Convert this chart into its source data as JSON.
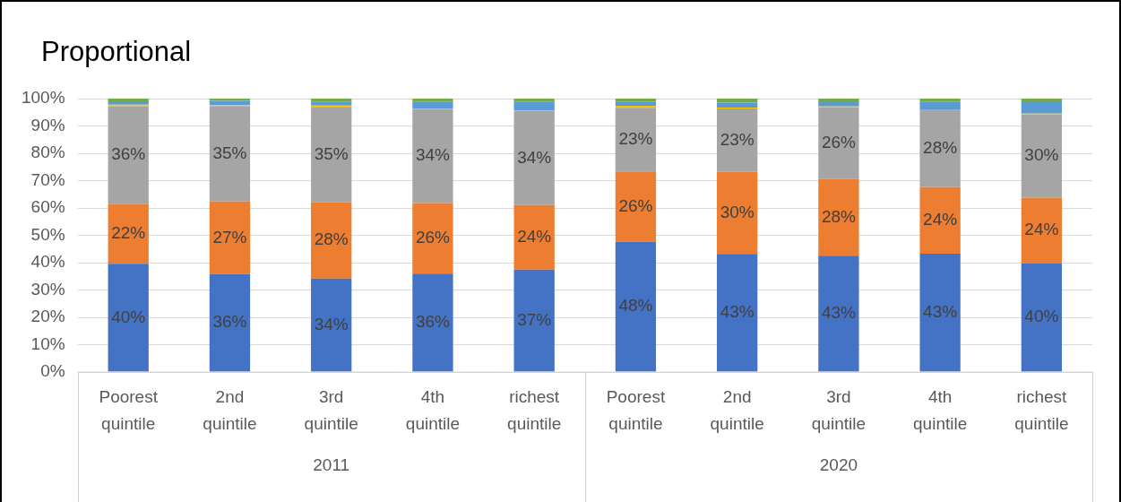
{
  "chart_data": {
    "type": "bar",
    "title": "Proportional",
    "stacked": true,
    "grid": "y",
    "legend": false,
    "categories": [
      "Poorest quintile",
      "2nd quintile",
      "3rd quintile",
      "4th quintile",
      "richest quintile",
      "Poorest quintile",
      "2nd quintile",
      "3rd quintile",
      "4th quintile",
      "richest quintile"
    ],
    "annotations": [
      "2011",
      "2020"
    ],
    "ylim": [
      0,
      100
    ],
    "yticks": [
      {
        "value": 0,
        "label": "0%"
      },
      {
        "value": 10,
        "label": "10%"
      },
      {
        "value": 20,
        "label": "20%"
      },
      {
        "value": 30,
        "label": "30%"
      },
      {
        "value": 40,
        "label": "40%"
      },
      {
        "value": 50,
        "label": "50%"
      },
      {
        "value": 60,
        "label": "60%"
      },
      {
        "value": 70,
        "label": "70%"
      },
      {
        "value": 80,
        "label": "80%"
      },
      {
        "value": 90,
        "label": "90%"
      },
      {
        "value": 100,
        "label": "100%"
      }
    ],
    "series": [
      {
        "color": "#4472c4",
        "values": [
          39.6,
          35.8,
          34.2,
          36.0,
          37.5,
          47.6,
          43.2,
          42.6,
          43.3,
          39.8
        ],
        "value_labels": [
          "40%",
          "36%",
          "34%",
          "36%",
          "37%",
          "48%",
          "43%",
          "43%",
          "43%",
          "40%"
        ]
      },
      {
        "color": "#ed7d31",
        "values": [
          21.8,
          26.6,
          27.9,
          25.8,
          23.6,
          25.8,
          30.0,
          28.0,
          24.3,
          24.0
        ],
        "value_labels": [
          "22%",
          "27%",
          "28%",
          "26%",
          "24%",
          "26%",
          "30%",
          "28%",
          "24%",
          "24%"
        ]
      },
      {
        "color": "#a5a5a5",
        "values": [
          35.8,
          34.9,
          34.9,
          34.3,
          34.3,
          23.2,
          23.2,
          26.2,
          28.2,
          30.4
        ],
        "value_labels": [
          "36%",
          "35%",
          "35%",
          "34%",
          "34%",
          "23%",
          "23%",
          "26%",
          "28%",
          "30%"
        ]
      },
      {
        "color": "#ffc000",
        "values": [
          0.6,
          0.3,
          0.5,
          0.3,
          0.3,
          0.8,
          0.3,
          0.3,
          null,
          0.3
        ]
      },
      {
        "color": "#5b9bd5",
        "values": [
          1.2,
          1.6,
          1.4,
          2.5,
          3.2,
          1.5,
          1.8,
          1.9,
          3.1,
          4.2
        ]
      },
      {
        "color": "#70ad47",
        "values": [
          1.0,
          0.8,
          1.1,
          1.1,
          1.1,
          1.1,
          1.5,
          1.0,
          1.1,
          1.3
        ]
      }
    ]
  }
}
